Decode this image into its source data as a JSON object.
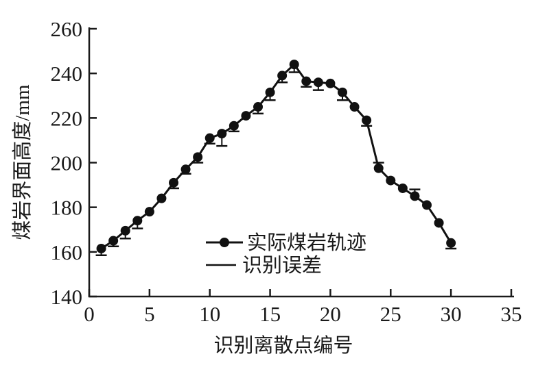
{
  "page": {
    "background": "#ffffff"
  },
  "chart_data": {
    "type": "line",
    "title": "",
    "xlabel": "识别离散点编号",
    "ylabel": "煤岩界面高度/mm",
    "xlim": [
      0,
      35
    ],
    "ylim": [
      140,
      260
    ],
    "xticks": [
      0,
      5,
      10,
      15,
      20,
      25,
      30,
      35
    ],
    "yticks": [
      140,
      160,
      180,
      200,
      220,
      240,
      260
    ],
    "grid": false,
    "legend_position": "inside-bottom-center",
    "axis_color": "#1a1a1a",
    "series_color": "#111111",
    "legend": {
      "entries": [
        {
          "label": "实际煤岩轨迹",
          "marker": "line-dot"
        },
        {
          "label": "识别误差",
          "marker": "line"
        }
      ]
    },
    "series": [
      {
        "name": "实际煤岩轨迹",
        "x": [
          1,
          2,
          3,
          4,
          5,
          6,
          7,
          8,
          9,
          10,
          11,
          12,
          13,
          14,
          15,
          16,
          17,
          18,
          19,
          20,
          21,
          22,
          23,
          24,
          25,
          26,
          27,
          28,
          29,
          30
        ],
        "y": [
          161.5,
          165,
          169.5,
          174,
          178,
          184,
          191,
          197,
          202.5,
          211,
          213,
          216.5,
          221,
          225,
          231.5,
          239,
          244,
          236.5,
          236,
          235.5,
          231.5,
          225,
          219,
          197.5,
          192,
          188.5,
          185,
          181,
          173,
          164
        ]
      }
    ],
    "error_bars": {
      "name": "识别误差",
      "items": [
        {
          "x": 1,
          "dir": "down",
          "mag": 3
        },
        {
          "x": 2,
          "dir": "down",
          "mag": 2.5
        },
        {
          "x": 3,
          "dir": "down",
          "mag": 3.5
        },
        {
          "x": 4,
          "dir": "down",
          "mag": 3.5
        },
        {
          "x": 7,
          "dir": "down",
          "mag": 2.5
        },
        {
          "x": 8,
          "dir": "down",
          "mag": 2
        },
        {
          "x": 9,
          "dir": "down",
          "mag": 2.5
        },
        {
          "x": 10,
          "dir": "down",
          "mag": 2.5
        },
        {
          "x": 11,
          "dir": "down",
          "mag": 5.5
        },
        {
          "x": 12,
          "dir": "down",
          "mag": 2.5
        },
        {
          "x": 14,
          "dir": "down",
          "mag": 3
        },
        {
          "x": 15,
          "dir": "down",
          "mag": 3.5
        },
        {
          "x": 16,
          "dir": "down",
          "mag": 3
        },
        {
          "x": 17,
          "dir": "down",
          "mag": 3.5
        },
        {
          "x": 18,
          "dir": "down",
          "mag": 2.5
        },
        {
          "x": 19,
          "dir": "down",
          "mag": 3.5
        },
        {
          "x": 21,
          "dir": "down",
          "mag": 3.5
        },
        {
          "x": 23,
          "dir": "down",
          "mag": 2.5
        },
        {
          "x": 24,
          "dir": "up",
          "mag": 2.5
        },
        {
          "x": 27,
          "dir": "up",
          "mag": 3
        },
        {
          "x": 30,
          "dir": "down",
          "mag": 2.5
        }
      ]
    }
  }
}
